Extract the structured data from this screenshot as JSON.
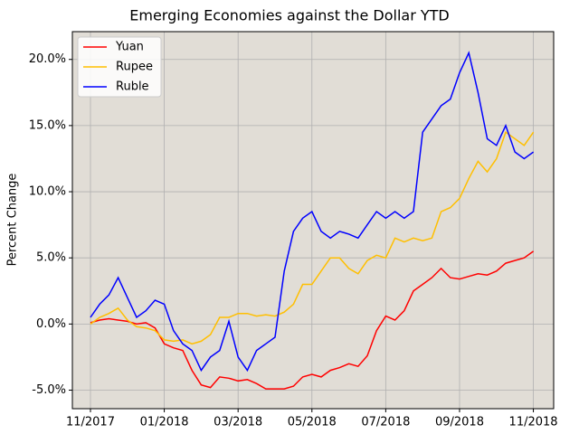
{
  "chart_data": {
    "type": "line",
    "title": "Emerging Economies against the Dollar YTD",
    "y_label": "Percent Change",
    "x": [
      0,
      0.25,
      0.5,
      0.75,
      1,
      1.25,
      1.5,
      1.75,
      2,
      2.25,
      2.5,
      2.75,
      3,
      3.25,
      3.5,
      3.75,
      4,
      4.25,
      4.5,
      4.75,
      5,
      5.25,
      5.5,
      5.75,
      6,
      6.25,
      6.5,
      6.75,
      7,
      7.25,
      7.5,
      7.75,
      8,
      8.25,
      8.5,
      8.75,
      9,
      9.25,
      9.5,
      9.75,
      10,
      10.25,
      10.5,
      10.75,
      11,
      11.25,
      11.5,
      11.75,
      12
    ],
    "series": [
      {
        "name": "Yuan",
        "color": "#ff0000",
        "values": [
          0.1,
          0.3,
          0.4,
          0.3,
          0.2,
          0.0,
          0.1,
          -0.3,
          -1.5,
          -1.8,
          -2.0,
          -3.5,
          -4.6,
          -4.8,
          -4.0,
          -4.1,
          -4.3,
          -4.2,
          -4.5,
          -4.9,
          -4.9,
          -4.9,
          -4.7,
          -4.0,
          -3.8,
          -4.0,
          -3.5,
          -3.3,
          -3.0,
          -3.2,
          -2.4,
          -0.5,
          0.6,
          0.3,
          1.0,
          2.5,
          3.0,
          3.5,
          4.2,
          3.5,
          3.4,
          3.6,
          3.8,
          3.7,
          4.0,
          4.6,
          4.8,
          5.0,
          5.5
        ]
      },
      {
        "name": "Rupee",
        "color": "#ffbf00",
        "values": [
          0.0,
          0.5,
          0.8,
          1.2,
          0.3,
          -0.2,
          -0.3,
          -0.5,
          -1.2,
          -1.3,
          -1.2,
          -1.5,
          -1.3,
          -0.8,
          0.5,
          0.5,
          0.8,
          0.8,
          0.6,
          0.7,
          0.6,
          0.9,
          1.5,
          3.0,
          3.0,
          4.0,
          5.0,
          5.0,
          4.2,
          3.8,
          4.8,
          5.2,
          5.0,
          6.5,
          6.2,
          6.5,
          6.3,
          6.5,
          8.5,
          8.8,
          9.5,
          11.0,
          12.3,
          11.5,
          12.5,
          14.5,
          14.0,
          13.5,
          14.5
        ]
      },
      {
        "name": "Ruble",
        "color": "#0000ff",
        "values": [
          0.5,
          1.5,
          2.2,
          3.5,
          2.0,
          0.5,
          1.0,
          1.8,
          1.5,
          -0.5,
          -1.5,
          -2.0,
          -3.5,
          -2.5,
          -2.0,
          0.2,
          -2.5,
          -3.5,
          -2.0,
          -1.5,
          -1.0,
          4.0,
          7.0,
          8.0,
          8.5,
          7.0,
          6.5,
          7.0,
          6.8,
          6.5,
          7.5,
          8.5,
          8.0,
          8.5,
          8.0,
          8.5,
          14.5,
          15.5,
          16.5,
          17.0,
          19.0,
          20.5,
          17.5,
          14.0,
          13.5,
          15.0,
          13.0,
          12.5,
          13.0
        ]
      }
    ],
    "xlim": [
      -0.49,
      12.55
    ],
    "xticks": [
      {
        "value": 0,
        "label": "11/2017"
      },
      {
        "value": 2,
        "label": "01/2018"
      },
      {
        "value": 4,
        "label": "03/2018"
      },
      {
        "value": 6,
        "label": "05/2018"
      },
      {
        "value": 8,
        "label": "07/2018"
      },
      {
        "value": 10,
        "label": "09/2018"
      },
      {
        "value": 12,
        "label": "11/2018"
      }
    ],
    "ylim": [
      -6.4,
      22.1
    ],
    "yticks": [
      {
        "value": -5,
        "label": "-5.0%"
      },
      {
        "value": 0,
        "label": "0.0%"
      },
      {
        "value": 5,
        "label": "5.0%"
      },
      {
        "value": 10,
        "label": "10.0%"
      },
      {
        "value": 15,
        "label": "15.0%"
      },
      {
        "value": 20,
        "label": "20.0%"
      }
    ],
    "grid": true,
    "legend": "upper-left"
  }
}
